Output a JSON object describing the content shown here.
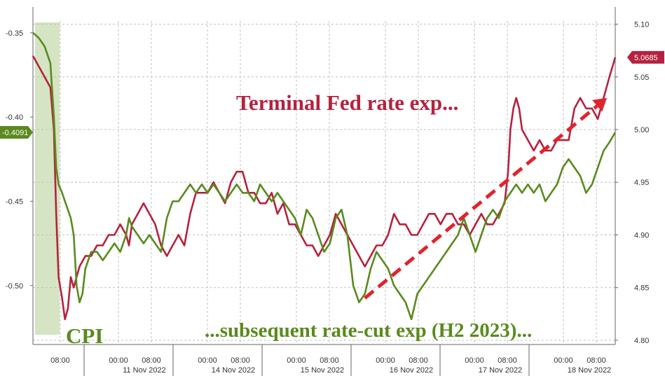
{
  "chart_data": {
    "type": "line",
    "title": "",
    "x_ticks": [
      {
        "time": "08:00",
        "date": ""
      },
      {
        "time": "00:00",
        "date": ""
      },
      {
        "time": "08:00",
        "date": "11 Nov 2022"
      },
      {
        "time": "00:00",
        "date": ""
      },
      {
        "time": "08:00",
        "date": "14 Nov 2022"
      },
      {
        "time": "00:00",
        "date": ""
      },
      {
        "time": "08:00",
        "date": "15 Nov 2022"
      },
      {
        "time": "00:00",
        "date": ""
      },
      {
        "time": "08:00",
        "date": "16 Nov 2022"
      },
      {
        "time": "00:00",
        "date": ""
      },
      {
        "time": "08:00",
        "date": "17 Nov 2022"
      },
      {
        "time": "00:00",
        "date": ""
      },
      {
        "time": "08:00",
        "date": "18 Nov 2022"
      }
    ],
    "x_range": [
      0,
      100
    ],
    "left_axis": {
      "ticks": [
        "-0.35",
        "-0.40",
        "-0.45",
        "-0.50"
      ],
      "tick_values": [
        -0.35,
        -0.4,
        -0.45,
        -0.5
      ],
      "ylim": [
        -0.535,
        -0.343
      ],
      "last_value_label": "-0.4091"
    },
    "right_axis": {
      "ticks": [
        "5.10",
        "5.05",
        "5.00",
        "4.95",
        "4.90",
        "4.85",
        "4.80"
      ],
      "tick_values": [
        5.1,
        5.05,
        5.0,
        4.95,
        4.9,
        4.85,
        4.8
      ],
      "ylim": [
        4.796,
        5.103
      ],
      "last_value_label": "5.0685"
    },
    "series": [
      {
        "key": "terminal_fed_rate",
        "axis": "right",
        "color": "#b5223f",
        "points": [
          [
            0,
            5.07
          ],
          [
            1,
            5.06
          ],
          [
            2,
            5.05
          ],
          [
            3,
            5.04
          ],
          [
            3.6,
            5.0
          ],
          [
            4,
            4.92
          ],
          [
            4.4,
            4.86
          ],
          [
            5,
            4.84
          ],
          [
            5.5,
            4.82
          ],
          [
            6,
            4.83
          ],
          [
            6.5,
            4.86
          ],
          [
            7,
            4.85
          ],
          [
            7.5,
            4.86
          ],
          [
            8,
            4.87
          ],
          [
            9,
            4.88
          ],
          [
            10,
            4.88
          ],
          [
            11,
            4.89
          ],
          [
            12,
            4.89
          ],
          [
            13,
            4.9
          ],
          [
            14,
            4.9
          ],
          [
            15,
            4.91
          ],
          [
            16,
            4.9
          ],
          [
            16.5,
            4.89
          ],
          [
            17,
            4.91
          ],
          [
            18,
            4.92
          ],
          [
            19,
            4.93
          ],
          [
            20,
            4.92
          ],
          [
            21,
            4.91
          ],
          [
            22,
            4.89
          ],
          [
            23,
            4.88
          ],
          [
            24,
            4.89
          ],
          [
            25,
            4.9
          ],
          [
            26,
            4.89
          ],
          [
            27,
            4.92
          ],
          [
            28,
            4.94
          ],
          [
            29,
            4.94
          ],
          [
            30,
            4.94
          ],
          [
            31,
            4.95
          ],
          [
            32,
            4.94
          ],
          [
            33,
            4.93
          ],
          [
            34,
            4.95
          ],
          [
            35,
            4.96
          ],
          [
            36,
            4.96
          ],
          [
            37,
            4.94
          ],
          [
            38,
            4.94
          ],
          [
            39,
            4.93
          ],
          [
            40,
            4.93
          ],
          [
            41,
            4.94
          ],
          [
            42,
            4.92
          ],
          [
            43,
            4.93
          ],
          [
            44,
            4.91
          ],
          [
            45,
            4.91
          ],
          [
            46,
            4.9
          ],
          [
            47,
            4.89
          ],
          [
            48,
            4.89
          ],
          [
            49,
            4.88
          ],
          [
            50,
            4.89
          ],
          [
            51,
            4.9
          ],
          [
            52,
            4.92
          ],
          [
            53,
            4.91
          ],
          [
            54,
            4.9
          ],
          [
            55,
            4.89
          ],
          [
            56,
            4.88
          ],
          [
            57,
            4.87
          ],
          [
            58,
            4.88
          ],
          [
            59,
            4.89
          ],
          [
            60,
            4.89
          ],
          [
            61,
            4.9
          ],
          [
            62,
            4.92
          ],
          [
            63,
            4.91
          ],
          [
            64,
            4.91
          ],
          [
            65,
            4.9
          ],
          [
            66,
            4.9
          ],
          [
            67,
            4.91
          ],
          [
            68,
            4.92
          ],
          [
            69,
            4.92
          ],
          [
            70,
            4.91
          ],
          [
            71,
            4.92
          ],
          [
            72,
            4.92
          ],
          [
            73,
            4.91
          ],
          [
            74,
            4.91
          ],
          [
            75,
            4.9
          ],
          [
            76,
            4.91
          ],
          [
            77,
            4.92
          ],
          [
            78,
            4.91
          ],
          [
            79,
            4.91
          ],
          [
            80,
            4.92
          ],
          [
            81,
            4.93
          ],
          [
            81.6,
            4.96
          ],
          [
            82,
            5.0
          ],
          [
            82.5,
            5.02
          ],
          [
            83,
            5.03
          ],
          [
            83.5,
            5.02
          ],
          [
            84,
            5.0
          ],
          [
            85,
            4.99
          ],
          [
            86,
            4.98
          ],
          [
            87,
            4.99
          ],
          [
            88,
            4.98
          ],
          [
            89,
            4.98
          ],
          [
            90,
            4.99
          ],
          [
            91,
            4.99
          ],
          [
            92,
            4.99
          ],
          [
            93,
            5.02
          ],
          [
            94,
            5.03
          ],
          [
            95,
            5.02
          ],
          [
            96,
            5.02
          ],
          [
            97,
            5.01
          ],
          [
            98,
            5.03
          ],
          [
            99,
            5.05
          ],
          [
            100,
            5.0685
          ]
        ]
      },
      {
        "key": "rate_cut_exp",
        "axis": "left",
        "color": "#5a8a1e",
        "points": [
          [
            0,
            -0.35
          ],
          [
            1,
            -0.353
          ],
          [
            2,
            -0.358
          ],
          [
            3,
            -0.368
          ],
          [
            3.6,
            -0.4
          ],
          [
            4,
            -0.43
          ],
          [
            4.4,
            -0.44
          ],
          [
            5,
            -0.445
          ],
          [
            5.5,
            -0.45
          ],
          [
            6,
            -0.455
          ],
          [
            6.5,
            -0.46
          ],
          [
            7,
            -0.47
          ],
          [
            7.5,
            -0.5
          ],
          [
            8,
            -0.51
          ],
          [
            8.5,
            -0.505
          ],
          [
            9,
            -0.49
          ],
          [
            10,
            -0.48
          ],
          [
            11,
            -0.48
          ],
          [
            12,
            -0.485
          ],
          [
            13,
            -0.48
          ],
          [
            14,
            -0.475
          ],
          [
            15,
            -0.48
          ],
          [
            16,
            -0.47
          ],
          [
            16.5,
            -0.46
          ],
          [
            17,
            -0.465
          ],
          [
            18,
            -0.47
          ],
          [
            19,
            -0.475
          ],
          [
            20,
            -0.47
          ],
          [
            21,
            -0.475
          ],
          [
            22,
            -0.48
          ],
          [
            23,
            -0.46
          ],
          [
            24,
            -0.45
          ],
          [
            25,
            -0.45
          ],
          [
            26,
            -0.445
          ],
          [
            27,
            -0.44
          ],
          [
            28,
            -0.445
          ],
          [
            29,
            -0.44
          ],
          [
            30,
            -0.445
          ],
          [
            31,
            -0.44
          ],
          [
            32,
            -0.445
          ],
          [
            33,
            -0.45
          ],
          [
            34,
            -0.445
          ],
          [
            35,
            -0.44
          ],
          [
            36,
            -0.445
          ],
          [
            37,
            -0.445
          ],
          [
            38,
            -0.45
          ],
          [
            39,
            -0.44
          ],
          [
            40,
            -0.445
          ],
          [
            41,
            -0.45
          ],
          [
            42,
            -0.445
          ],
          [
            43,
            -0.45
          ],
          [
            44,
            -0.455
          ],
          [
            45,
            -0.46
          ],
          [
            46,
            -0.47
          ],
          [
            47,
            -0.455
          ],
          [
            48,
            -0.46
          ],
          [
            49,
            -0.47
          ],
          [
            50,
            -0.48
          ],
          [
            51,
            -0.475
          ],
          [
            52,
            -0.46
          ],
          [
            53,
            -0.455
          ],
          [
            54,
            -0.47
          ],
          [
            55,
            -0.5
          ],
          [
            56,
            -0.51
          ],
          [
            57,
            -0.505
          ],
          [
            58,
            -0.49
          ],
          [
            59,
            -0.48
          ],
          [
            60,
            -0.485
          ],
          [
            61,
            -0.49
          ],
          [
            62,
            -0.5
          ],
          [
            63,
            -0.505
          ],
          [
            64,
            -0.51
          ],
          [
            65,
            -0.52
          ],
          [
            66,
            -0.505
          ],
          [
            67,
            -0.5
          ],
          [
            68,
            -0.495
          ],
          [
            69,
            -0.49
          ],
          [
            70,
            -0.485
          ],
          [
            71,
            -0.48
          ],
          [
            72,
            -0.475
          ],
          [
            73,
            -0.47
          ],
          [
            74,
            -0.46
          ],
          [
            75,
            -0.47
          ],
          [
            76,
            -0.48
          ],
          [
            77,
            -0.47
          ],
          [
            78,
            -0.46
          ],
          [
            79,
            -0.455
          ],
          [
            80,
            -0.46
          ],
          [
            81,
            -0.45
          ],
          [
            82,
            -0.445
          ],
          [
            83,
            -0.44
          ],
          [
            84,
            -0.445
          ],
          [
            85,
            -0.44
          ],
          [
            86,
            -0.445
          ],
          [
            87,
            -0.44
          ],
          [
            88,
            -0.45
          ],
          [
            89,
            -0.445
          ],
          [
            90,
            -0.44
          ],
          [
            91,
            -0.43
          ],
          [
            92,
            -0.425
          ],
          [
            93,
            -0.43
          ],
          [
            94,
            -0.435
          ],
          [
            95,
            -0.445
          ],
          [
            96,
            -0.44
          ],
          [
            97,
            -0.43
          ],
          [
            98,
            -0.42
          ],
          [
            99,
            -0.415
          ],
          [
            100,
            -0.4091
          ]
        ]
      }
    ],
    "highlight": {
      "label": "CPI",
      "x_range": [
        0,
        4.6
      ],
      "color": "#d5e4c3"
    },
    "annotations": [
      {
        "key": "fed",
        "text": "Terminal Fed rate exp...",
        "color": "#b5223f"
      },
      {
        "key": "cut",
        "text": "...subsequent rate-cut exp (H2 2023)...",
        "color": "#5a8a1e"
      },
      {
        "key": "cpi",
        "text": "CPI",
        "color": "#5a8a1e"
      }
    ],
    "arrow": {
      "from": [
        57,
        4.84
      ],
      "to": [
        100,
        5.03
      ],
      "axis": "right",
      "color": "#e0242f",
      "style": "dashed"
    },
    "grid": true
  }
}
